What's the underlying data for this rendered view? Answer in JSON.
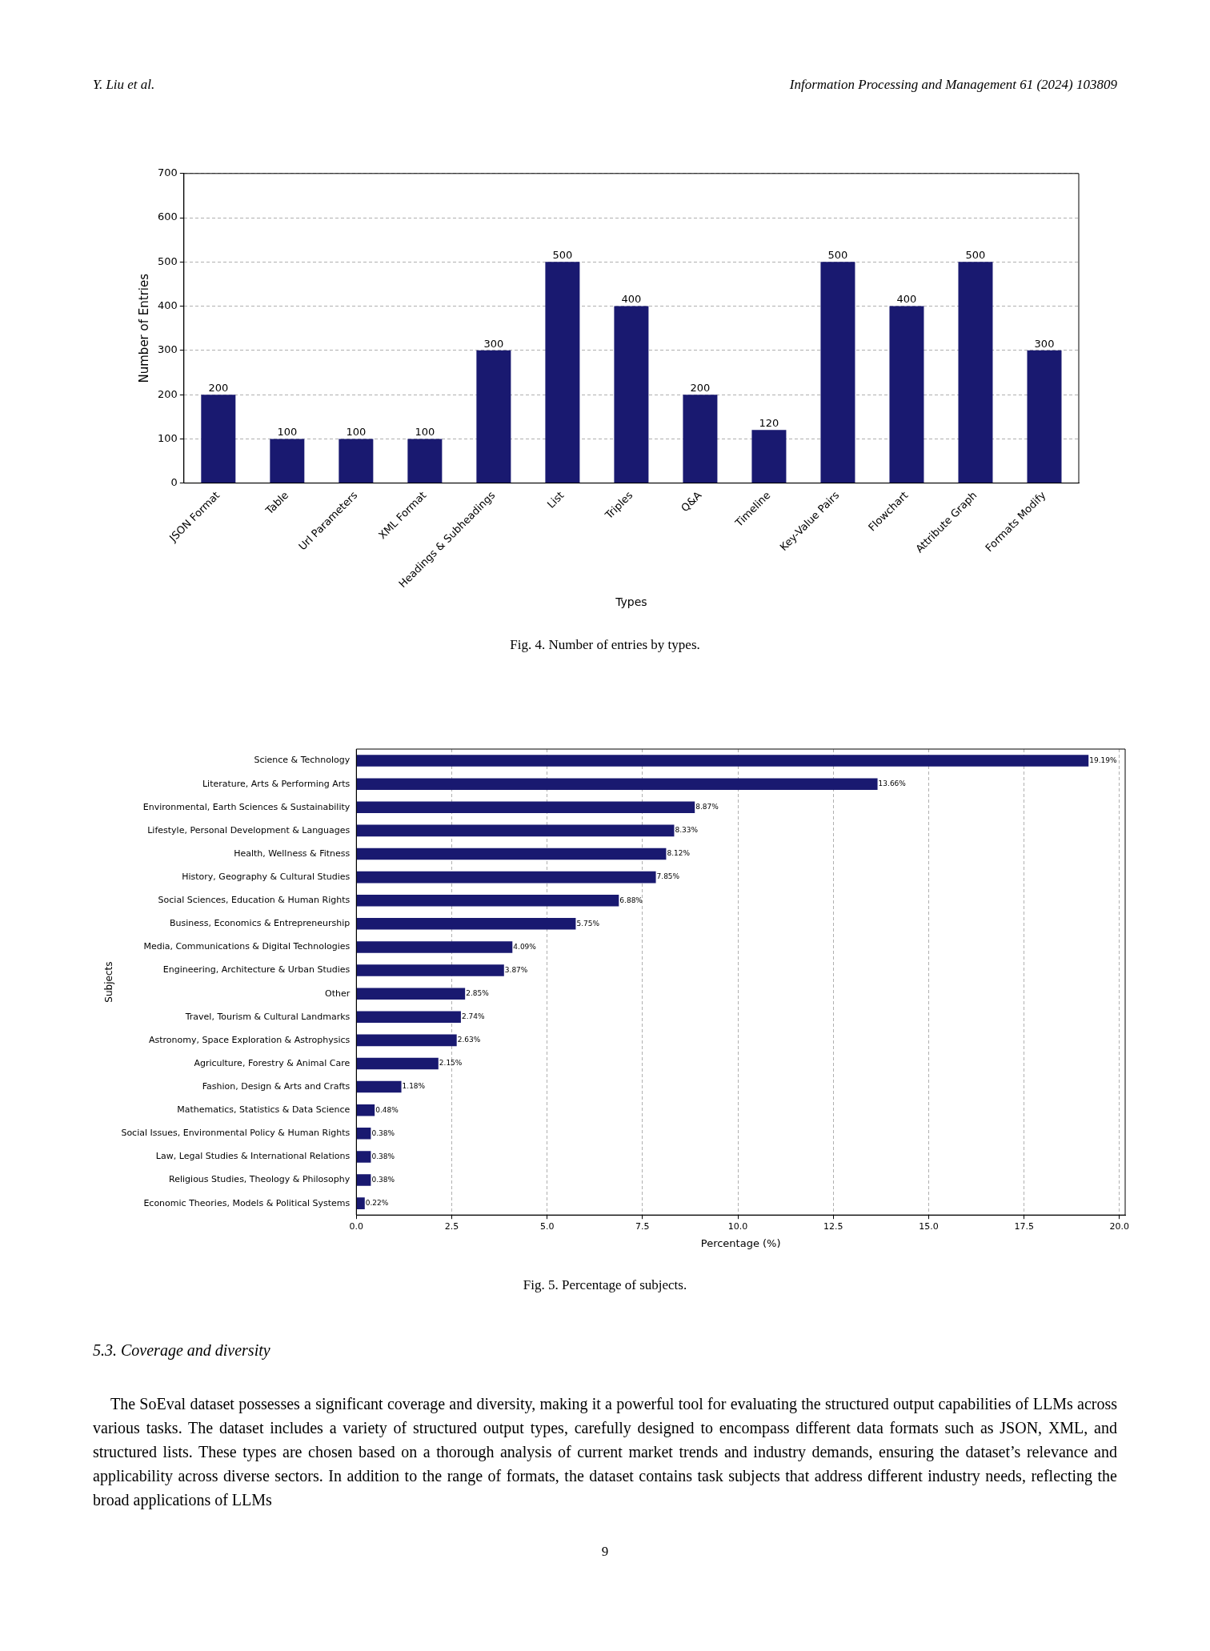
{
  "chart_data": [
    {
      "type": "bar",
      "xlabel": "Types",
      "ylabel": "Number of Entries",
      "categories": [
        "JSON Format",
        "Table",
        "Url Parameters",
        "XML Format",
        "Headings & Subheadings",
        "List",
        "Triples",
        "Q&A",
        "Timeline",
        "Key-Value Pairs",
        "Flowchart",
        "Attribute Graph",
        "Formats Modify"
      ],
      "values": [
        200,
        100,
        100,
        100,
        300,
        500,
        400,
        200,
        120,
        500,
        400,
        500,
        300
      ],
      "color": "#191970",
      "ylim": [
        0,
        700
      ],
      "yticks": [
        0,
        100,
        200,
        300,
        400,
        500,
        600,
        700
      ],
      "grid": "y",
      "data_labels": true,
      "legend": false,
      "annotations": [
        "Y.  Liu  et al.",
        "Information Processing and Management 61 (2024) 103809",
        "Fig. 4.  Number of entries by types."
      ]
    },
    {
      "type": "bar",
      "orientation": "horizontal",
      "xlabel": "Percentage (%)",
      "ylabel": "Subjects",
      "categories": [
        "Science & Technology",
        "Literature, Arts & Performing Arts",
        "Environmental, Earth Sciences & Sustainability",
        "Lifestyle, Personal Development & Languages",
        "Health, Wellness & Fitness",
        "History, Geography & Cultural Studies",
        "Social Sciences, Education & Human Rights",
        "Business, Economics & Entrepreneurship",
        "Media, Communications & Digital Technologies",
        "Engineering, Architecture & Urban Studies",
        "Other",
        "Travel, Tourism & Cultural Landmarks",
        "Astronomy, Space Exploration & Astrophysics",
        "Agriculture, Forestry & Animal Care",
        "Fashion, Design & Arts and Crafts",
        "Mathematics, Statistics & Data Science",
        "Social Issues, Environmental Policy & Human Rights",
        "Law, Legal Studies & International Relations",
        "Religious Studies, Theology & Philosophy",
        "Economic Theories, Models & Political Systems"
      ],
      "values": [
        19.19,
        13.66,
        8.87,
        8.33,
        8.12,
        7.85,
        6.88,
        5.75,
        4.09,
        3.87,
        2.85,
        2.74,
        2.63,
        2.15,
        1.18,
        0.48,
        0.38,
        0.38,
        0.38,
        0.22
      ],
      "value_labels": [
        "19.19%",
        "13.66%",
        "8.87%",
        "8.33%",
        "8.12%",
        "7.85%",
        "6.88%",
        "5.75%",
        "4.09%",
        "3.87%",
        "2.85%",
        "2.74%",
        "2.63%",
        "2.15%",
        "1.18%",
        "0.48%",
        "0.38%",
        "0.38%",
        "0.38%",
        "0.22%"
      ],
      "color": "#191970",
      "xlim": [
        0,
        20.15
      ],
      "xticks": [
        {
          "value": 0,
          "label": "0.0"
        },
        {
          "value": 2.5,
          "label": "2.5"
        },
        {
          "value": 5,
          "label": "5.0"
        },
        {
          "value": 7.5,
          "label": "7.5"
        },
        {
          "value": 10,
          "label": "10.0"
        },
        {
          "value": 12.5,
          "label": "12.5"
        },
        {
          "value": 15,
          "label": "15.0"
        },
        {
          "value": 17.5,
          "label": "17.5"
        },
        {
          "value": 20,
          "label": "20.0"
        }
      ],
      "grid": "x",
      "legend": false,
      "annotations": [
        "Fig. 5.  Percentage of subjects.",
        "5.3.  Coverage and diversity",
        "The SoEval dataset possesses a significant coverage and diversity, making it a powerful tool for evaluating the structured output capabilities of LLMs across various tasks. The dataset includes a variety of structured output types, carefully designed to encompass different data formats such as JSON, XML, and structured lists. These types are chosen based on a thorough analysis of current market trends and industry demands, ensuring the dataset’s relevance and applicability across diverse sectors. In addition to the range of formats, the dataset contains task subjects that address different industry needs, reflecting the broad applications of LLMs",
        "9"
      ]
    }
  ]
}
